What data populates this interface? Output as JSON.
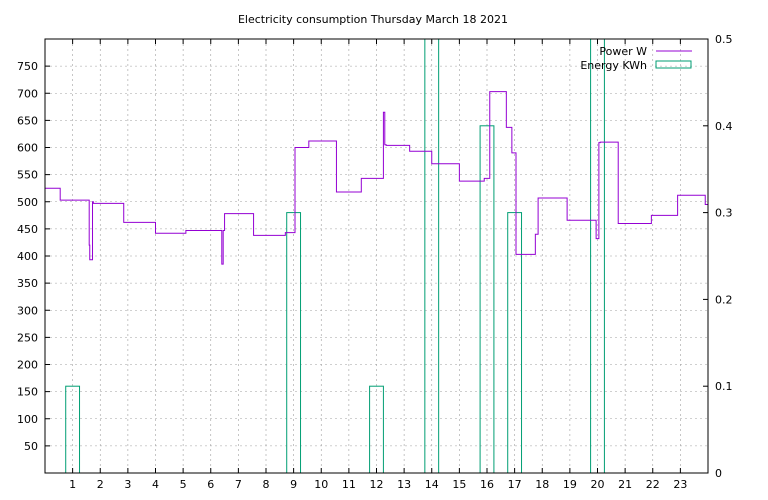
{
  "chart_data": {
    "type": "line",
    "title": "Electricity consumption Thursday March 18 2021",
    "xlabel": "",
    "ylabel": "",
    "y2label": "",
    "xlim": [
      0,
      24
    ],
    "ylim": [
      0,
      800
    ],
    "y2lim": [
      0,
      0.5
    ],
    "grid": true,
    "legend_position": "top-right",
    "x_ticks": [
      1,
      2,
      3,
      4,
      5,
      6,
      7,
      8,
      9,
      10,
      11,
      12,
      13,
      14,
      15,
      16,
      17,
      18,
      19,
      20,
      21,
      22,
      23
    ],
    "x_tick_labels": [
      "1",
      "2",
      "3",
      "4",
      "5",
      "6",
      "7",
      "8",
      "9",
      "10",
      "11",
      "12",
      "13",
      "14",
      "15",
      "16",
      "17",
      "18",
      "19",
      "20",
      "21",
      "22",
      "23"
    ],
    "y_ticks": [
      50,
      100,
      150,
      200,
      250,
      300,
      350,
      400,
      450,
      500,
      550,
      600,
      650,
      700,
      750
    ],
    "y_tick_labels": [
      "50",
      "100",
      "150",
      "200",
      "250",
      "300",
      "350",
      "400",
      "450",
      "500",
      "550",
      "600",
      "650",
      "700",
      "750"
    ],
    "y2_ticks": [
      0,
      0.1,
      0.2,
      0.3,
      0.4,
      0.5
    ],
    "y2_tick_labels": [
      "0",
      "0.1",
      "0.2",
      "0.3",
      "0.4",
      "0.5"
    ],
    "colors": {
      "power": "#9400d3",
      "energy": "#009e73",
      "grid": "#a0a0a0"
    },
    "series": [
      {
        "name": "Power W",
        "style": "steps",
        "axis": "y1",
        "x": [
          0.0,
          0.55,
          1.6,
          1.62,
          1.65,
          1.72,
          1.75,
          2.85,
          4.0,
          5.1,
          6.4,
          6.45,
          6.5,
          7.55,
          8.7,
          9.05,
          9.55,
          10.55,
          11.45,
          12.25,
          12.3,
          12.35,
          13.2,
          14.0,
          15.0,
          15.9,
          16.1,
          16.7,
          16.9,
          17.05,
          17.75,
          17.85,
          18.9,
          19.95,
          20.05,
          20.1,
          20.75,
          21.95,
          22.9,
          23.9,
          24.0
        ],
        "y": [
          525,
          503,
          420,
          393,
          393,
          500,
          497,
          462,
          442,
          447,
          385,
          447,
          478,
          438,
          443,
          600,
          612,
          518,
          543,
          665,
          605,
          604,
          593,
          570,
          538,
          543,
          703,
          637,
          590,
          403,
          440,
          507,
          466,
          432,
          609,
          610,
          460,
          475,
          512,
          495,
          495
        ]
      },
      {
        "name": "Energy KWh",
        "style": "boxes",
        "axis": "y2",
        "x": [
          1,
          9,
          12,
          14,
          16,
          17,
          20
        ],
        "y": [
          0.1,
          0.3,
          0.1,
          0.5,
          0.4,
          0.3,
          0.5
        ]
      }
    ]
  }
}
